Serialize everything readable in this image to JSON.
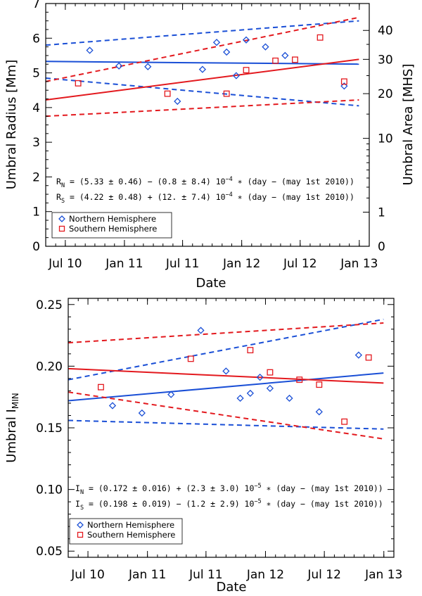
{
  "colors": {
    "north": "#1a4fd6",
    "south": "#e3191e",
    "axis": "#000000"
  },
  "chart_data": [
    {
      "type": "scatter",
      "xlabel": "Date",
      "ylabel": "Umbral Radius [Mm]",
      "y2label": "Umbral Area [MHS]",
      "x_tick_labels": [
        "Jul 10",
        "Jan 11",
        "Jul 11",
        "Jan 12",
        "Jul 12",
        "Jan 13"
      ],
      "x_ticks": [
        "2010-07-01",
        "2011-01-01",
        "2011-07-01",
        "2012-01-01",
        "2012-07-01",
        "2013-01-01"
      ],
      "xlim": [
        "2010-05-01",
        "2013-02-01"
      ],
      "ylim": [
        0,
        7
      ],
      "y_ticks": [
        0,
        1,
        2,
        3,
        4,
        5,
        6,
        7
      ],
      "y2_ticks": [
        0,
        1,
        10,
        20,
        30,
        40
      ],
      "equations": [
        {
          "lhs": "R",
          "sub": "N",
          "rhs": " = (5.33 ± 0.46) − (0.8 ± 8.4) 10",
          "exp": "−4",
          "tail": " ∗ (day − (may 1st 2010))"
        },
        {
          "lhs": "R",
          "sub": "S",
          "rhs": " = (4.22 ± 0.48) + (12. ± 7.4) 10",
          "exp": "−4",
          "tail": " ∗ (day − (may 1st 2010))"
        }
      ],
      "series": [
        {
          "name": "Northern Hemisphere",
          "marker": "diamond",
          "points": [
            [
              "2010-09-15",
              5.65
            ],
            [
              "2010-12-15",
              5.2
            ],
            [
              "2011-03-15",
              5.18
            ],
            [
              "2011-06-15",
              4.18
            ],
            [
              "2011-09-01",
              5.1
            ],
            [
              "2011-10-15",
              5.88
            ],
            [
              "2011-11-15",
              5.6
            ],
            [
              "2011-12-15",
              4.92
            ],
            [
              "2012-01-15",
              5.95
            ],
            [
              "2012-03-15",
              5.75
            ],
            [
              "2012-05-15",
              5.5
            ],
            [
              "2012-11-15",
              4.62
            ]
          ],
          "fit": [
            5.33,
            -8e-05
          ],
          "upper": [
            [
              "2010-05-01",
              5.8
            ],
            [
              "2012-12-31",
              6.5
            ]
          ],
          "lower": [
            [
              "2010-05-01",
              4.85
            ],
            [
              "2012-12-31",
              4.05
            ]
          ]
        },
        {
          "name": "Southern Hemisphere",
          "marker": "square",
          "points": [
            [
              "2010-08-10",
              4.7
            ],
            [
              "2011-05-15",
              4.4
            ],
            [
              "2011-11-15",
              4.4
            ],
            [
              "2012-01-15",
              5.08
            ],
            [
              "2012-04-15",
              5.35
            ],
            [
              "2012-06-15",
              5.38
            ],
            [
              "2012-09-01",
              6.02
            ],
            [
              "2012-11-15",
              4.75
            ]
          ],
          "fit": [
            4.22,
            0.0012
          ],
          "upper": [
            [
              "2010-05-01",
              4.75
            ],
            [
              "2012-12-31",
              6.6
            ]
          ],
          "lower": [
            [
              "2010-05-01",
              3.75
            ],
            [
              "2012-12-31",
              4.22
            ]
          ]
        }
      ]
    },
    {
      "type": "scatter",
      "xlabel": "Date",
      "ylabel": "Umbral I",
      "ylabel_sub": "MIN",
      "x_tick_labels": [
        "Jul 10",
        "Jan 11",
        "Jul 11",
        "Jan 12",
        "Jul 12",
        "Jan 13"
      ],
      "x_ticks": [
        "2010-07-01",
        "2011-01-01",
        "2011-07-01",
        "2012-01-01",
        "2012-07-01",
        "2013-01-01"
      ],
      "xlim": [
        "2010-05-01",
        "2013-02-01"
      ],
      "ylim": [
        0.045,
        0.255
      ],
      "y_ticks": [
        0.05,
        0.1,
        0.15,
        0.2,
        0.25
      ],
      "y_tick_labels": [
        "0.05",
        "0.10",
        "0.15",
        "0.20",
        "0.25"
      ],
      "equations": [
        {
          "lhs": "I",
          "sub": "N",
          "rhs": " = (0.172 ± 0.016) + (2.3 ± 3.0) 10",
          "exp": "−5",
          "tail": " ∗ (day − (may 1st 2010))"
        },
        {
          "lhs": "I",
          "sub": "S",
          "rhs": " = (0.198 ± 0.019) − (1.2 ± 2.9) 10",
          "exp": "−5",
          "tail": " ∗ (day − (may 1st 2010))"
        }
      ],
      "series": [
        {
          "name": "Northern Hemisphere",
          "marker": "diamond",
          "points": [
            [
              "2010-09-15",
              0.168
            ],
            [
              "2010-12-15",
              0.162
            ],
            [
              "2011-03-15",
              0.177
            ],
            [
              "2011-06-15",
              0.229
            ],
            [
              "2011-09-01",
              0.196
            ],
            [
              "2011-10-15",
              0.174
            ],
            [
              "2011-11-15",
              0.178
            ],
            [
              "2011-12-15",
              0.191
            ],
            [
              "2012-01-15",
              0.182
            ],
            [
              "2012-03-15",
              0.174
            ],
            [
              "2012-06-15",
              0.163
            ],
            [
              "2012-10-15",
              0.209
            ]
          ],
          "fit": [
            0.172,
            2.3e-05
          ],
          "upper": [
            [
              "2010-05-01",
              0.189
            ],
            [
              "2012-12-31",
              0.238
            ]
          ],
          "lower": [
            [
              "2010-05-01",
              0.156
            ],
            [
              "2012-12-31",
              0.149
            ]
          ]
        },
        {
          "name": "Southern Hemisphere",
          "marker": "square",
          "points": [
            [
              "2010-08-10",
              0.183
            ],
            [
              "2011-05-15",
              0.206
            ],
            [
              "2011-11-15",
              0.213
            ],
            [
              "2012-01-15",
              0.195
            ],
            [
              "2012-04-15",
              0.189
            ],
            [
              "2012-06-15",
              0.185
            ],
            [
              "2012-09-01",
              0.155
            ],
            [
              "2012-11-15",
              0.207
            ]
          ],
          "fit": [
            0.198,
            -1.2e-05
          ],
          "upper": [
            [
              "2010-05-01",
              0.219
            ],
            [
              "2012-12-31",
              0.235
            ]
          ],
          "lower": [
            [
              "2010-05-01",
              0.179
            ],
            [
              "2012-12-31",
              0.141
            ]
          ]
        }
      ]
    }
  ]
}
